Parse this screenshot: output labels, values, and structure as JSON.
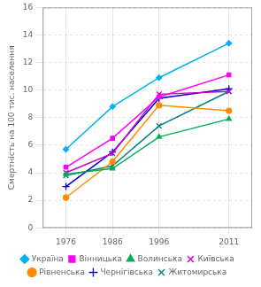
{
  "chart_data": {
    "type": "line",
    "x": [
      1976,
      1986,
      1996,
      2011
    ],
    "xlim": [
      1971,
      2016
    ],
    "xticks": [
      1976,
      1986,
      1996,
      2011
    ],
    "ylim": [
      0,
      16
    ],
    "yticks": [
      0,
      2,
      4,
      6,
      8,
      10,
      12,
      14,
      16
    ],
    "y_label": "Смертність на 100 тис. населення",
    "grid": true,
    "legend": "bottom",
    "series": [
      {
        "name": "Україна",
        "values": [
          5.7,
          8.8,
          10.9,
          13.4
        ],
        "color": "#00b0f0",
        "marker": "diamond"
      },
      {
        "name": "Вінницька",
        "values": [
          4.4,
          6.5,
          9.5,
          11.1
        ],
        "color": "#ff00ff",
        "marker": "square"
      },
      {
        "name": "Волинська",
        "values": [
          3.9,
          4.3,
          6.6,
          7.9
        ],
        "color": "#00b050",
        "marker": "triangle"
      },
      {
        "name": "Київська",
        "values": [
          4.0,
          5.4,
          9.7,
          9.9
        ],
        "color": "#cc00cc",
        "marker": "x"
      },
      {
        "name": "Рівненська",
        "values": [
          2.2,
          4.8,
          8.9,
          8.5
        ],
        "color": "#ff8c00",
        "marker": "circle"
      },
      {
        "name": "Чернігівська",
        "values": [
          3.0,
          5.5,
          9.4,
          10.1
        ],
        "color": "#0000cd",
        "marker": "plus"
      },
      {
        "name": "Житомирська",
        "values": [
          3.8,
          4.5,
          7.4,
          9.9
        ],
        "color": "#008080",
        "marker": "x"
      }
    ]
  }
}
